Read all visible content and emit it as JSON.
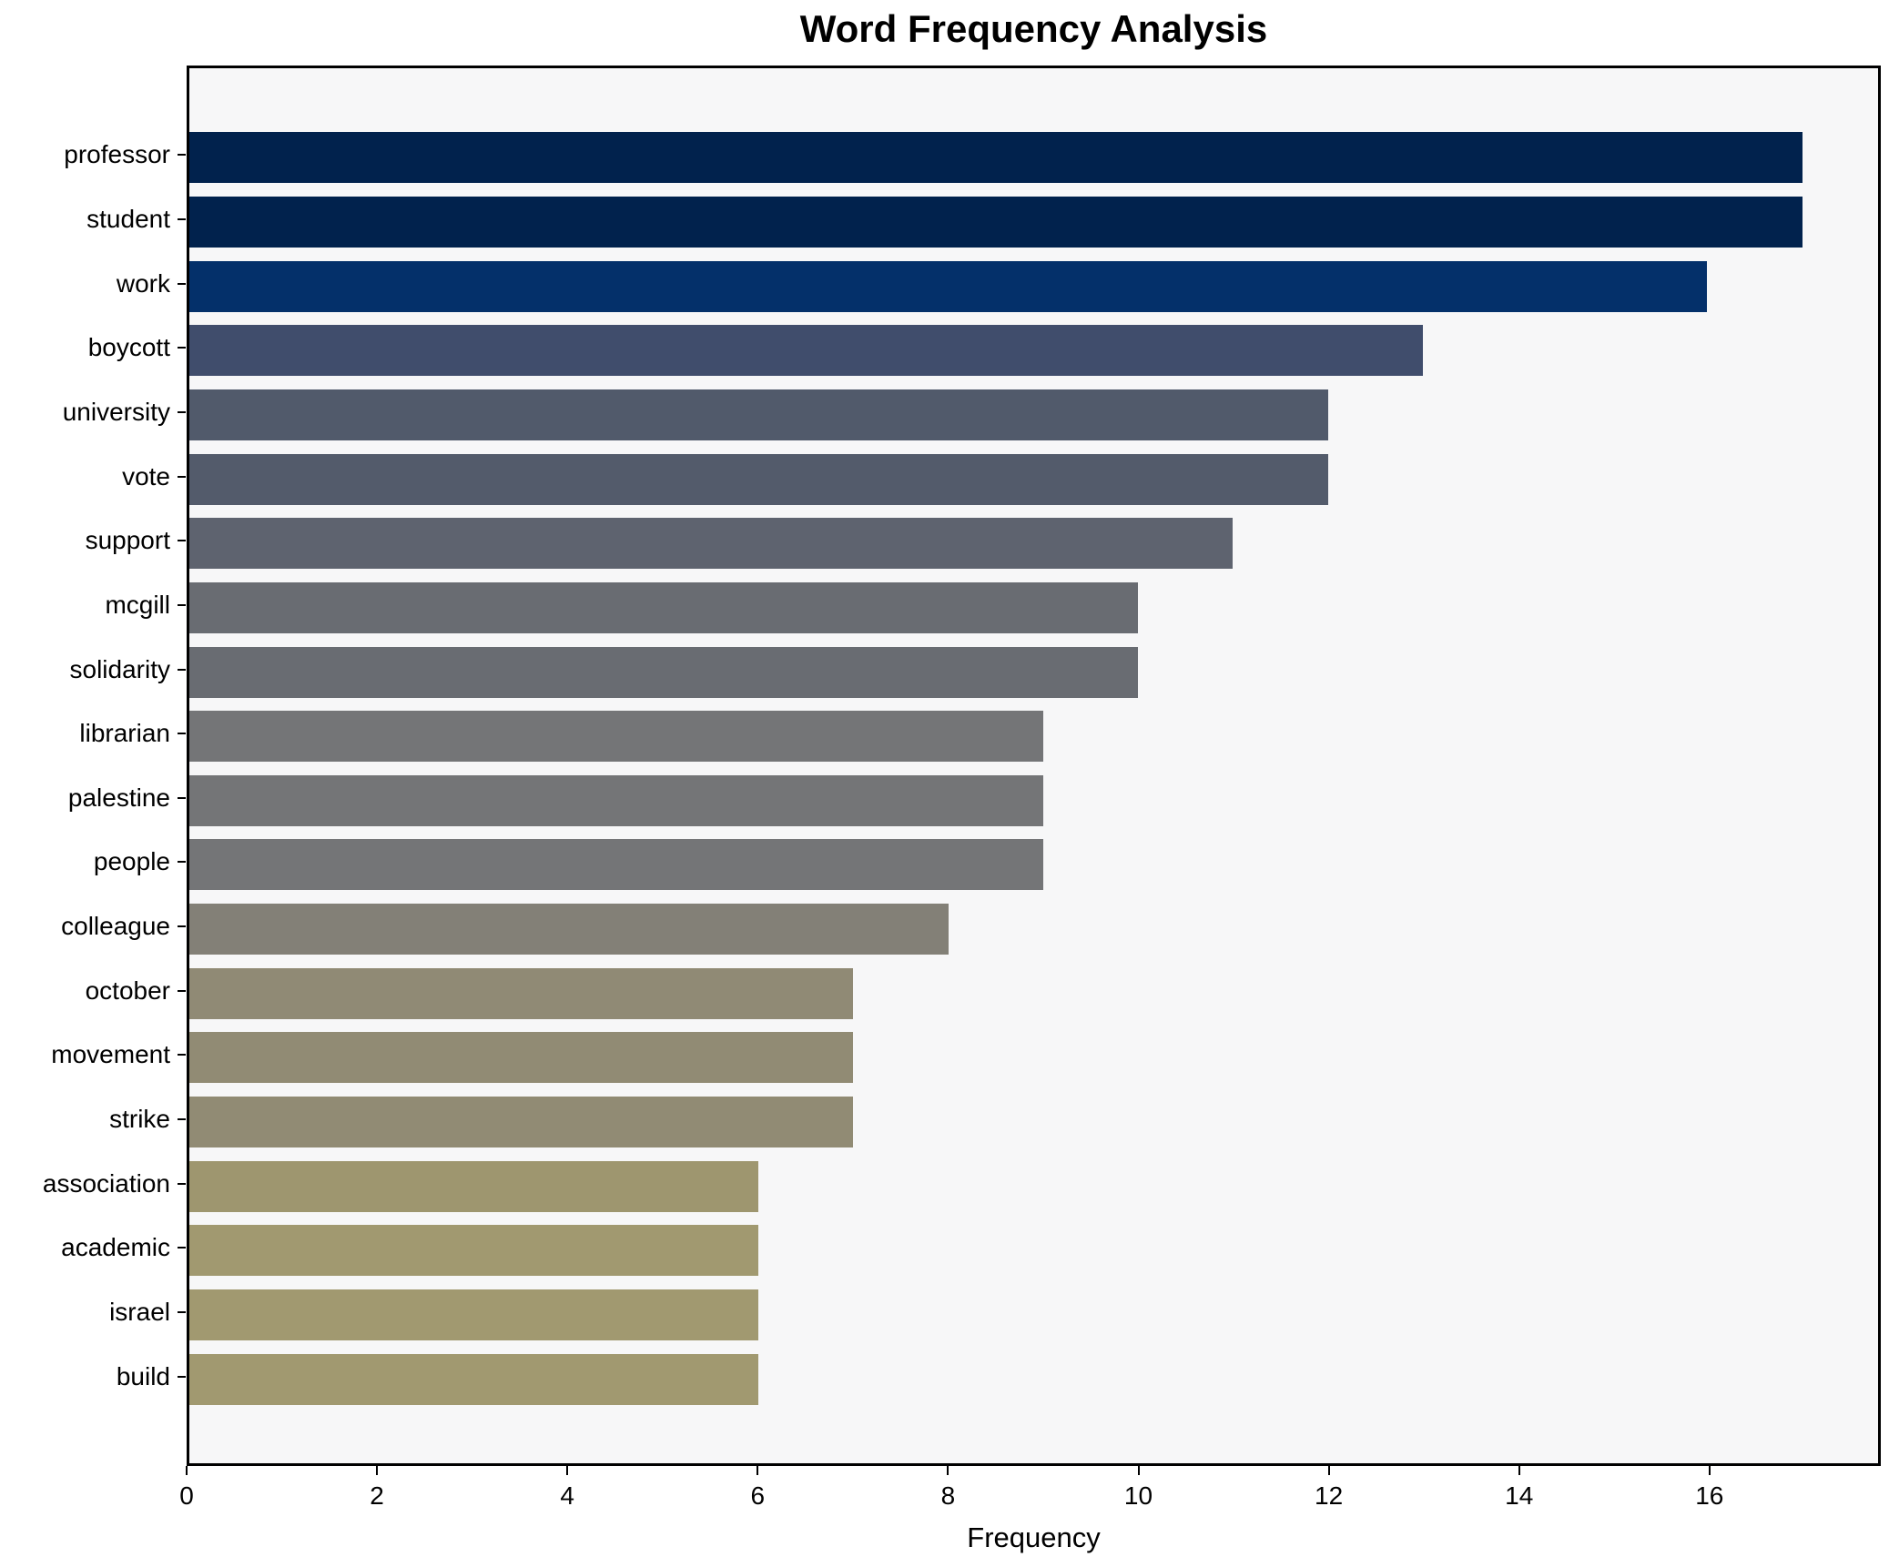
{
  "title": "Word Frequency Analysis",
  "chart_data": {
    "type": "bar",
    "orientation": "horizontal",
    "title": "Word Frequency Analysis",
    "xlabel": "Frequency",
    "ylabel": "",
    "xlim": [
      0,
      17.8
    ],
    "x_ticks": [
      0,
      2,
      4,
      6,
      8,
      10,
      12,
      14,
      16
    ],
    "grid": false,
    "legend": false,
    "categories": [
      "professor",
      "student",
      "work",
      "boycott",
      "university",
      "vote",
      "support",
      "mcgill",
      "solidarity",
      "librarian",
      "palestine",
      "people",
      "colleague",
      "october",
      "movement",
      "strike",
      "association",
      "academic",
      "israel",
      "build"
    ],
    "values": [
      17,
      17,
      16,
      13,
      12,
      12,
      11,
      10,
      10,
      9,
      9,
      9,
      8,
      7,
      7,
      7,
      6,
      6,
      6,
      6
    ],
    "bar_colors": [
      "#01224d",
      "#01224d",
      "#04306a",
      "#404d6c",
      "#515a6b",
      "#535b6b",
      "#5e636f",
      "#696c72",
      "#696c72",
      "#747577",
      "#747577",
      "#747577",
      "#838077",
      "#908a75",
      "#918b74",
      "#918b74",
      "#9e966f",
      "#a19970",
      "#a19970",
      "#a19970"
    ],
    "colors": {
      "figure_background": "#ffffff",
      "axes_background": "#f7f7f8",
      "spine": "#000000",
      "text": "#000000"
    }
  }
}
